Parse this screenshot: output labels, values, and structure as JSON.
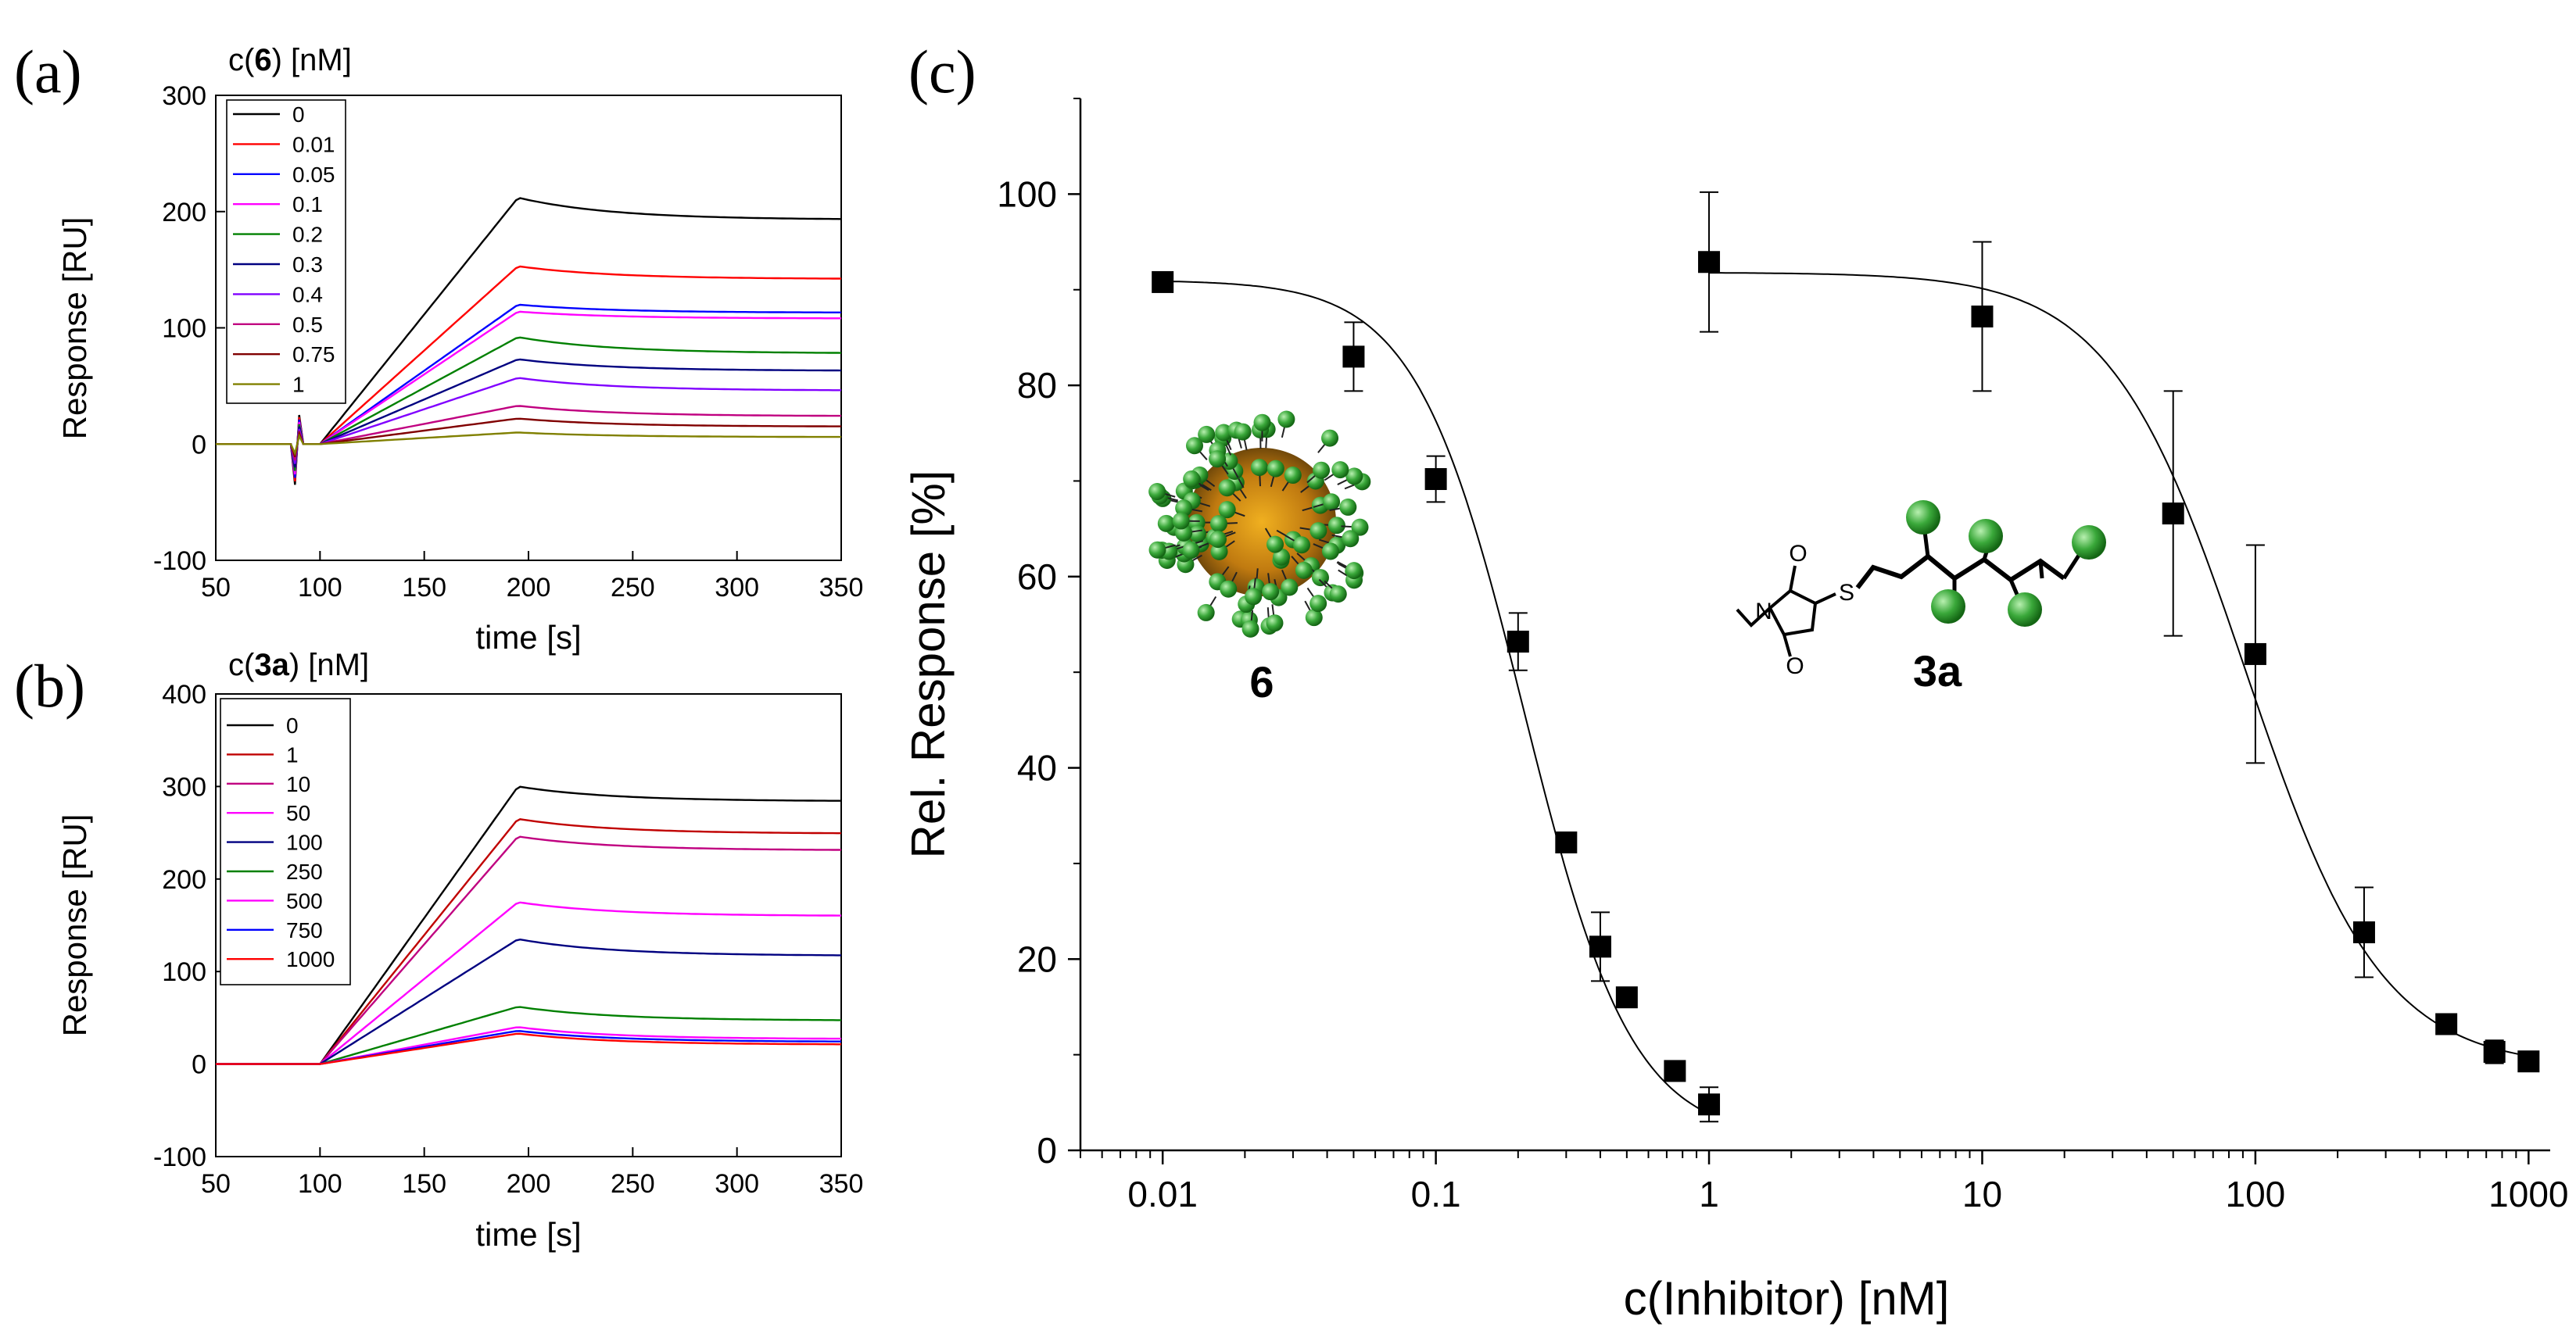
{
  "panels": {
    "a": "(a)",
    "b": "(b)",
    "c": "(c)"
  },
  "chart_data": [
    {
      "id": "a",
      "type": "line",
      "panel_label": "(a)",
      "legend_title_prefix": "c(",
      "legend_title_compound": "6",
      "legend_title_suffix": ") [nM]",
      "xlabel": "time [s]",
      "ylabel": "Response [RU]",
      "xlim": [
        50,
        350
      ],
      "ylim": [
        -100,
        300
      ],
      "xticks": [
        50,
        100,
        150,
        200,
        250,
        300,
        350
      ],
      "yticks": [
        -100,
        0,
        100,
        200,
        300
      ],
      "legend": "top-left",
      "series": [
        {
          "name": "0",
          "color": "#000000",
          "peak": 212,
          "end": 193
        },
        {
          "name": "0.01",
          "color": "#ff0000",
          "peak": 153,
          "end": 142
        },
        {
          "name": "0.05",
          "color": "#0000ff",
          "peak": 120,
          "end": 113
        },
        {
          "name": "0.1",
          "color": "#ff00ff",
          "peak": 114,
          "end": 108
        },
        {
          "name": "0.2",
          "color": "#008000",
          "peak": 92,
          "end": 78
        },
        {
          "name": "0.3",
          "color": "#000080",
          "peak": 73,
          "end": 63
        },
        {
          "name": "0.4",
          "color": "#8000ff",
          "peak": 57,
          "end": 46
        },
        {
          "name": "0.5",
          "color": "#c00080",
          "peak": 33,
          "end": 24
        },
        {
          "name": "0.75",
          "color": "#800000",
          "peak": 22,
          "end": 15
        },
        {
          "name": "1",
          "color": "#808000",
          "peak": 10,
          "end": 6
        }
      ]
    },
    {
      "id": "b",
      "type": "line",
      "panel_label": "(b)",
      "legend_title_prefix": "c(",
      "legend_title_compound": "3a",
      "legend_title_suffix": ") [nM]",
      "xlabel": "time [s]",
      "ylabel": "Response [RU]",
      "xlim": [
        50,
        350
      ],
      "ylim": [
        -100,
        400
      ],
      "xticks": [
        50,
        100,
        150,
        200,
        250,
        300,
        350
      ],
      "yticks": [
        -100,
        0,
        100,
        200,
        300,
        400
      ],
      "legend": "top-left",
      "series": [
        {
          "name": "0",
          "color": "#000000",
          "peak": 300,
          "end": 284
        },
        {
          "name": "1",
          "color": "#c00000",
          "peak": 265,
          "end": 249
        },
        {
          "name": "10",
          "color": "#c00080",
          "peak": 246,
          "end": 231
        },
        {
          "name": "50",
          "color": "#ff00ff",
          "peak": 175,
          "end": 160
        },
        {
          "name": "100",
          "color": "#000080",
          "peak": 135,
          "end": 117
        },
        {
          "name": "250",
          "color": "#008000",
          "peak": 62,
          "end": 47
        },
        {
          "name": "500",
          "color": "#ff00ff",
          "peak": 40,
          "end": 27
        },
        {
          "name": "750",
          "color": "#0000ff",
          "peak": 36,
          "end": 24
        },
        {
          "name": "1000",
          "color": "#ff0000",
          "peak": 33,
          "end": 21
        }
      ]
    },
    {
      "id": "c",
      "type": "scatter",
      "panel_label": "(c)",
      "xlabel": "c(Inhibitor) [nM]",
      "ylabel": "Rel. Response [%]",
      "xscale": "log",
      "xlim": [
        0.005,
        1200
      ],
      "ylim": [
        0,
        110
      ],
      "xticks": [
        0.01,
        0.1,
        1,
        10,
        100,
        1000
      ],
      "xticklabels": [
        "0.01",
        "0.1",
        "1",
        "10",
        "100",
        "1000"
      ],
      "yticks": [
        0,
        20,
        40,
        60,
        80,
        100
      ],
      "series": [
        {
          "name": "6",
          "x": [
            0.01,
            0.05,
            0.1,
            0.2,
            0.3,
            0.4,
            0.5,
            0.75,
            1
          ],
          "y": [
            90.8,
            83.0,
            70.2,
            53.2,
            32.2,
            21.3,
            16.0,
            8.3,
            4.8
          ],
          "err": [
            0,
            3.6,
            2.4,
            3.0,
            0,
            3.6,
            0,
            0,
            1.8
          ],
          "fit": {
            "top": 91,
            "bottom": 1,
            "ic50": 0.21,
            "hill": 2.2
          }
        },
        {
          "name": "3a",
          "x": [
            1,
            10,
            50,
            100,
            250,
            500,
            750,
            1000
          ],
          "y": [
            92.9,
            87.2,
            66.6,
            51.9,
            22.8,
            13.2,
            10.3,
            9.3
          ],
          "err": [
            7.3,
            7.8,
            12.8,
            11.4,
            4.7,
            0,
            1.2,
            0
          ],
          "fit": {
            "top": 91.8,
            "bottom": 8.6,
            "ic50": 92,
            "hill": 1.75
          }
        }
      ],
      "annotations": {
        "compound_6": "6",
        "compound_3a": "3a",
        "atom_s": "S",
        "atom_n": "N",
        "atom_o1": "O",
        "atom_o2": "O"
      }
    }
  ]
}
